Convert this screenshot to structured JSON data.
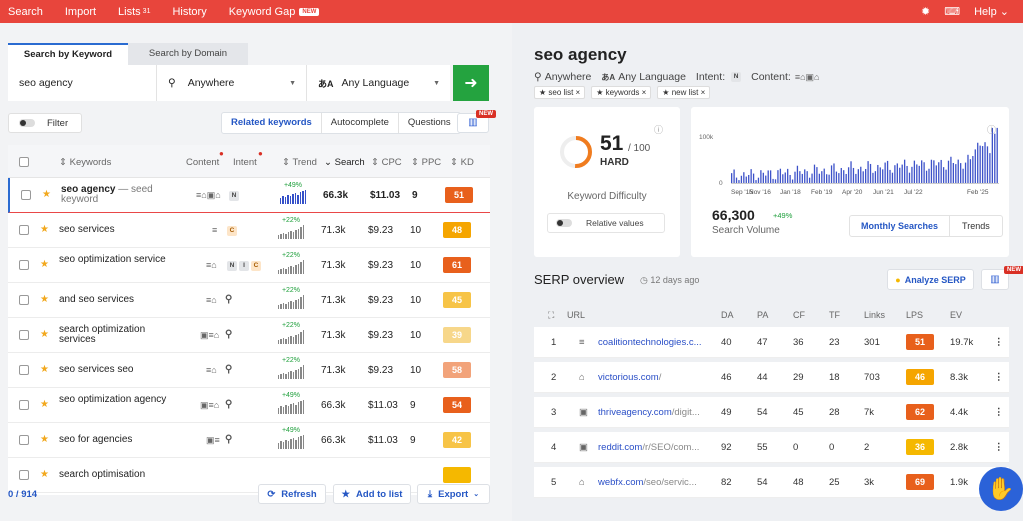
{
  "topnav": {
    "items": [
      {
        "label": "Search"
      },
      {
        "label": "Import"
      },
      {
        "label": "Lists",
        "badge": "31"
      },
      {
        "label": "History"
      },
      {
        "label": "Keyword Gap",
        "badge": "NEW"
      }
    ],
    "help": "Help"
  },
  "search": {
    "tabs": [
      "Search by Keyword",
      "Search by Domain"
    ],
    "query": "seo agency",
    "location": "Anywhere",
    "language": "Any Language"
  },
  "filter_label": "Filter",
  "segments": [
    "Related keywords",
    "Autocomplete",
    "Questions"
  ],
  "new_badge": "NEW",
  "table": {
    "headers": [
      "Keywords",
      "Content",
      "Intent",
      "Trend",
      "Search",
      "CPC",
      "PPC",
      "KD"
    ],
    "rows": [
      {
        "keyword": "seo agency",
        "seed": "— seed keyword",
        "content": "≡⌂▣⌂",
        "intent": [
          "N"
        ],
        "trend": "+49%",
        "search": "66.3k",
        "cpc": "$11.03",
        "ppc": "9",
        "kd": "51",
        "kd_color": "#e8601c"
      },
      {
        "keyword": "seo services",
        "content": "≡",
        "intent": [
          "C"
        ],
        "trend": "+22%",
        "search": "71.3k",
        "cpc": "$9.23",
        "ppc": "10",
        "kd": "48",
        "kd_color": "#f5a500"
      },
      {
        "keyword": "seo optimization service",
        "content": "≡⌂",
        "intent": [
          "N",
          "I",
          "C"
        ],
        "trend": "+22%",
        "search": "71.3k",
        "cpc": "$9.23",
        "ppc": "10",
        "kd": "61",
        "kd_color": "#e8601c"
      },
      {
        "keyword": "and seo services",
        "content": "≡⌂",
        "intent": [
          "🔍"
        ],
        "trend": "+22%",
        "search": "71.3k",
        "cpc": "$9.23",
        "ppc": "10",
        "kd": "45",
        "kd_color": "#f7c447"
      },
      {
        "keyword": "search optimization services",
        "content": "▣≡⌂",
        "intent": [
          "🔍"
        ],
        "trend": "+22%",
        "search": "71.3k",
        "cpc": "$9.23",
        "ppc": "10",
        "kd": "39",
        "kd_color": "#f7d78a"
      },
      {
        "keyword": "seo services seo",
        "content": "≡⌂",
        "intent": [
          "🔍"
        ],
        "trend": "+22%",
        "search": "71.3k",
        "cpc": "$9.23",
        "ppc": "10",
        "kd": "58",
        "kd_color": "#f2a37a"
      },
      {
        "keyword": "seo optimization agency",
        "content": "▣≡⌂",
        "intent": [
          "🔍"
        ],
        "trend": "+49%",
        "search": "66.3k",
        "cpc": "$11.03",
        "ppc": "9",
        "kd": "54",
        "kd_color": "#e8601c"
      },
      {
        "keyword": "seo for agencies",
        "content": "▣≡",
        "intent": [
          "🔍"
        ],
        "trend": "+49%",
        "search": "66.3k",
        "cpc": "$11.03",
        "ppc": "9",
        "kd": "42",
        "kd_color": "#f7c447"
      },
      {
        "keyword": "search optimisation",
        "content": "",
        "intent": [],
        "trend": "",
        "search": "",
        "cpc": "",
        "ppc": "",
        "kd": "",
        "kd_color": "#f5b800"
      }
    ]
  },
  "footer": {
    "count": "0 / 914",
    "refresh": "Refresh",
    "add": "Add to list",
    "export": "Export"
  },
  "overview": {
    "title": "seo agency",
    "location": "Anywhere",
    "language": "Any Language",
    "intent_label": "Intent:",
    "intent_val": "N",
    "content_label": "Content:",
    "content_icons": "≡⌂▣⌂",
    "lists": [
      "seo list ×",
      "keywords ×",
      "new list ×"
    ]
  },
  "difficulty": {
    "value": "51",
    "max": "/ 100",
    "rating": "HARD",
    "label": "Keyword Difficulty",
    "relative": "Relative values",
    "fraction": 0.51
  },
  "volume": {
    "value": "66,300",
    "change": "+49%",
    "label": "Search Volume",
    "tabs": [
      "Monthly Searches",
      "Trends"
    ],
    "ymax": "100k",
    "ymin": "0",
    "xlabels": [
      "Sep '15",
      "Nov '16",
      "Jan '18",
      "Feb '19",
      "Apr '20",
      "Jun '21",
      "Jul '22",
      "Feb '25"
    ]
  },
  "serp": {
    "title": "SERP overview",
    "ago": "12 days ago",
    "analyze": "Analyze SERP",
    "headers": [
      "URL",
      "DA",
      "PA",
      "CF",
      "TF",
      "Links",
      "LPS",
      "EV"
    ],
    "rows": [
      {
        "n": "1",
        "domain": "coalitiontechnologies.c...",
        "path": "",
        "da": "40",
        "pa": "47",
        "cf": "36",
        "tf": "23",
        "links": "301",
        "lps": "51",
        "lps_color": "#e8601c",
        "ev": "19.7k"
      },
      {
        "n": "2",
        "domain": "victorious.com",
        "path": "/",
        "da": "46",
        "pa": "44",
        "cf": "29",
        "tf": "18",
        "links": "703",
        "lps": "46",
        "lps_color": "#f5a500",
        "ev": "8.3k"
      },
      {
        "n": "3",
        "domain": "thriveagency.com",
        "path": "/digit...",
        "da": "49",
        "pa": "54",
        "cf": "45",
        "tf": "28",
        "links": "7k",
        "lps": "62",
        "lps_color": "#e8601c",
        "ev": "4.4k"
      },
      {
        "n": "4",
        "domain": "reddit.com",
        "path": "/r/SEO/com...",
        "da": "92",
        "pa": "55",
        "cf": "0",
        "tf": "0",
        "links": "2",
        "lps": "36",
        "lps_color": "#f5b800",
        "ev": "2.8k"
      },
      {
        "n": "5",
        "domain": "webfx.com",
        "path": "/seo/servic...",
        "da": "82",
        "pa": "54",
        "cf": "48",
        "tf": "25",
        "links": "3k",
        "lps": "69",
        "lps_color": "#e8601c",
        "ev": "1.9k"
      }
    ]
  },
  "colors": {
    "brand": "#e8453c",
    "accent": "#2557c4",
    "go": "#24a33f"
  }
}
